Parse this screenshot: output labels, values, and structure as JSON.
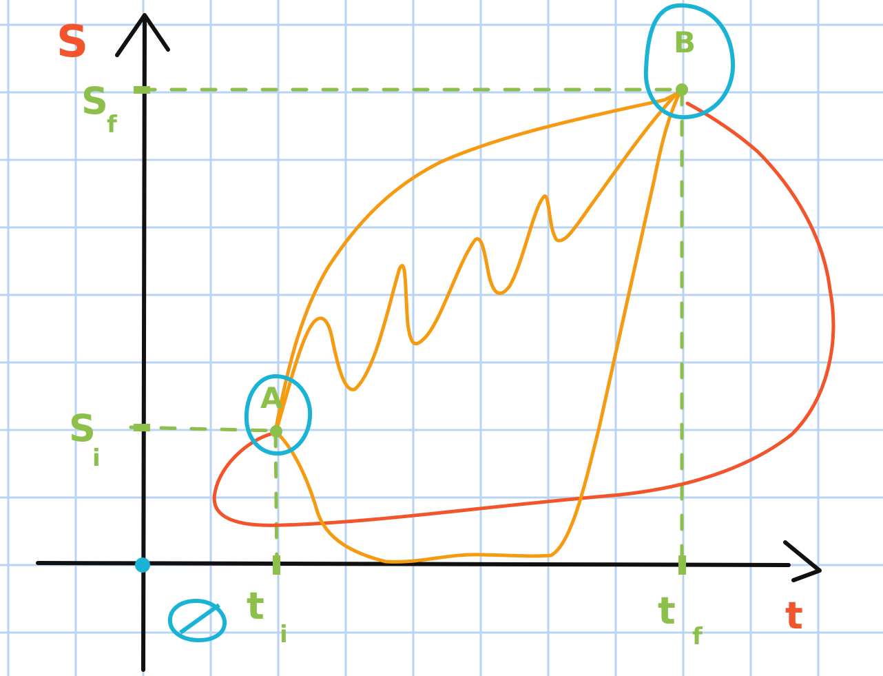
{
  "axes": {
    "vertical_label": "S",
    "horizontal_label": "t",
    "origin_label": "∅"
  },
  "ticks": {
    "s_f": {
      "main": "S",
      "sub": "f"
    },
    "s_i": {
      "main": "S",
      "sub": "i"
    },
    "t_i": {
      "main": "t",
      "sub": "i"
    },
    "t_f": {
      "main": "t",
      "sub": "f"
    }
  },
  "points": {
    "a_label": "A",
    "b_label": "B"
  },
  "colors": {
    "grid": "#b9d3f2",
    "axis": "#111111",
    "guide": "#8dc04a",
    "path_orange": "#f59b12",
    "path_red": "#f2552b",
    "circle": "#1ab3d6",
    "axis_label": "#f2552b"
  }
}
